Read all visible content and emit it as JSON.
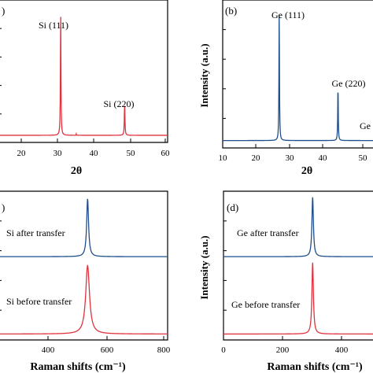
{
  "chart_data": [
    {
      "panel": "a",
      "type": "line",
      "xlabel": "2θ",
      "ylabel": "",
      "xlim": [
        10,
        60
      ],
      "xticks": [
        "20",
        "30",
        "40",
        "50",
        "60"
      ],
      "color": "#e0323c",
      "series": [
        {
          "baseline": 0.05,
          "peaks": [
            {
              "x": 28.4,
              "y": 0.86,
              "w": 0.09
            },
            {
              "x": 33.0,
              "y": 0.01,
              "w": 0.05
            },
            {
              "x": 47.3,
              "y": 0.23,
              "w": 0.1
            }
          ]
        }
      ],
      "annotations": [
        "Si (111)",
        "Si (220)"
      ],
      "panel_label": ")"
    },
    {
      "panel": "b",
      "type": "line",
      "xlabel": "2θ",
      "ylabel": "Intensity (a.u.)",
      "xlim": [
        10,
        56.5
      ],
      "xticks": [
        "10",
        "20",
        "30",
        "40",
        "50"
      ],
      "color": "#1f4e8c",
      "series": [
        {
          "baseline": 0.05,
          "peaks": [
            {
              "x": 27.3,
              "y": 0.88,
              "w": 0.09
            },
            {
              "x": 45.3,
              "y": 0.38,
              "w": 0.09
            }
          ]
        }
      ],
      "annotations": [
        "Ge (111)",
        "Ge (220)",
        "Ge"
      ],
      "panel_label": "(b)"
    },
    {
      "panel": "c",
      "type": "line",
      "xlabel": "Raman shifts (cm⁻¹)",
      "ylabel": "",
      "xlim": [
        210,
        800
      ],
      "xticks": [
        "400",
        "600",
        "800"
      ],
      "series": [
        {
          "name": "Si after transfer",
          "color": "#1f4e8c",
          "baseline": 0.56,
          "peaks": [
            {
              "x": 521,
              "y": 0.39,
              "w": 4
            }
          ]
        },
        {
          "name": "Si before transfer",
          "color": "#e0323c",
          "baseline": 0.04,
          "peaks": [
            {
              "x": 521,
              "y": 0.46,
              "w": 8
            }
          ]
        }
      ],
      "annotations": [
        "Si after transfer",
        "Si before transfer"
      ],
      "panel_label": ")"
    },
    {
      "panel": "d",
      "type": "line",
      "xlabel": "Raman shifts (cm⁻¹)",
      "ylabel": "Intensity (a.u.)",
      "xlim": [
        0,
        510
      ],
      "xticks": [
        "0",
        "200",
        "400"
      ],
      "series": [
        {
          "name": "Ge after transfer",
          "color": "#1f4e8c",
          "baseline": 0.56,
          "peaks": [
            {
              "x": 301,
              "y": 0.4,
              "w": 3
            }
          ]
        },
        {
          "name": "Ge before transfer",
          "color": "#e0323c",
          "baseline": 0.04,
          "peaks": [
            {
              "x": 301,
              "y": 0.48,
              "w": 3
            }
          ]
        }
      ],
      "annotations": [
        "Ge after transfer",
        "Ge before transfer"
      ],
      "panel_label": "(d)"
    }
  ]
}
